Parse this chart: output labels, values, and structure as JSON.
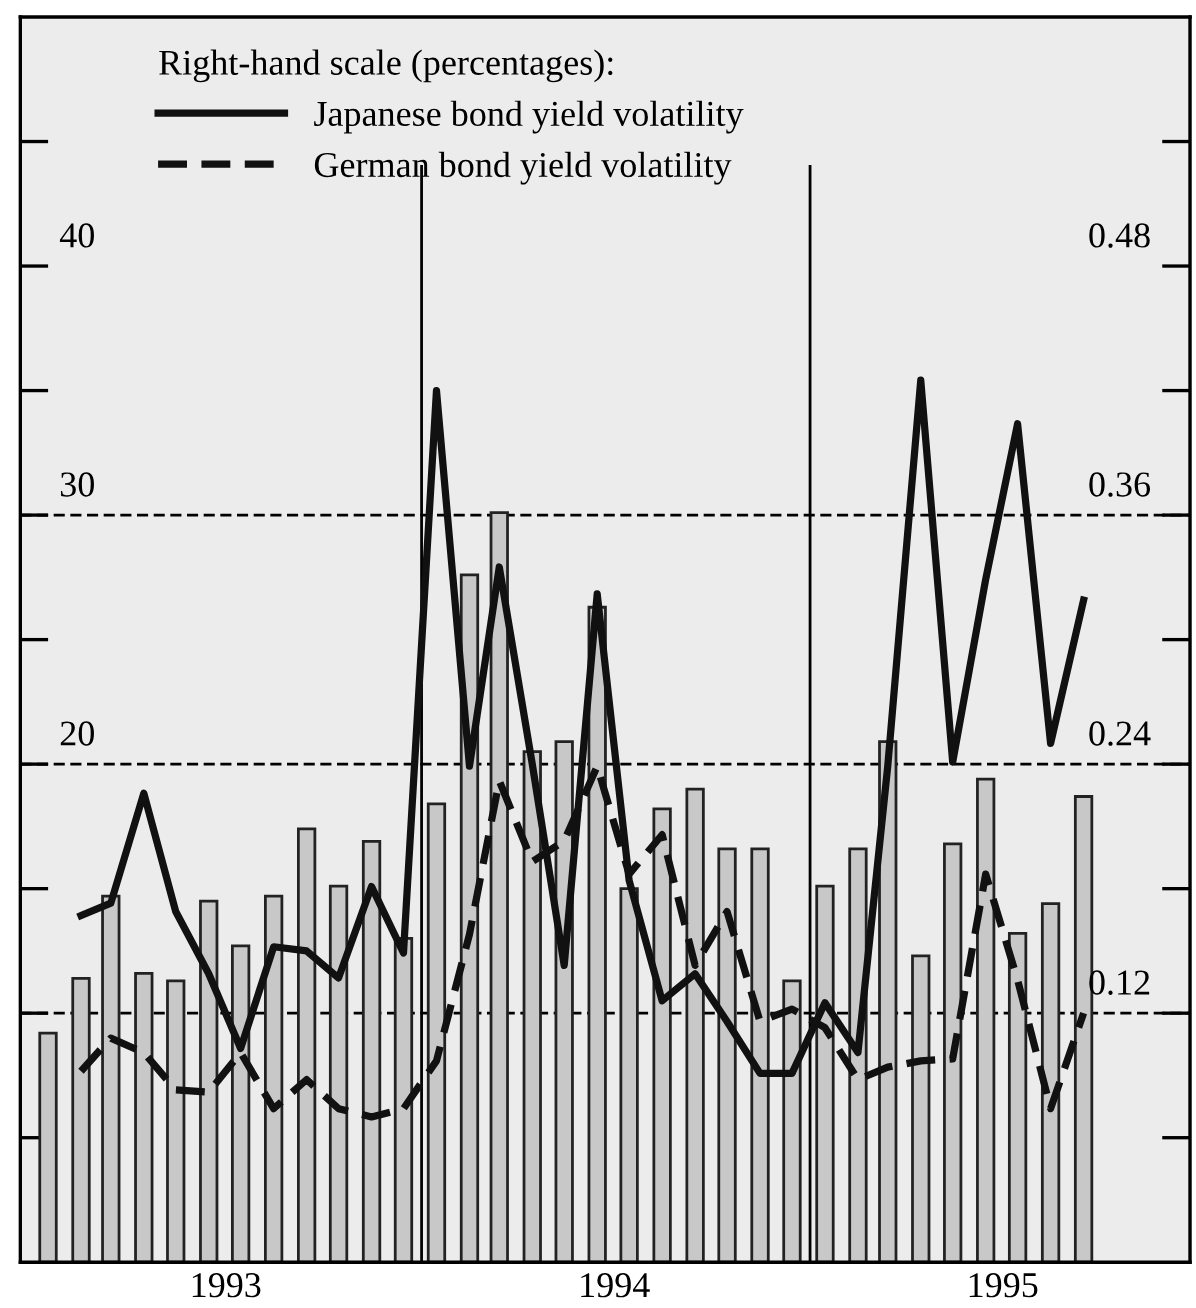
{
  "chart_data": {
    "type": "bar",
    "legend_title": "Right-hand scale (percentages):",
    "legend": "top left",
    "x": [
      "1993-01-15",
      "1993-02-15",
      "1993-03-15",
      "1993-04-15",
      "1993-05-15",
      "1993-06-15",
      "1993-07-15",
      "1993-08-15",
      "1993-09-15",
      "1993-10-15",
      "1993-11-15",
      "1993-12-15",
      "1994-01-15",
      "1994-02-15",
      "1994-03-15",
      "1994-04-15",
      "1994-05-15",
      "1994-06-15",
      "1994-07-15",
      "1994-08-15",
      "1994-09-15",
      "1994-10-15",
      "1994-11-15",
      "1994-12-15",
      "1995-01-15",
      "1995-02-15",
      "1995-03-15",
      "1995-04-15",
      "1995-05-15",
      "1995-06-15",
      "1995-07-15",
      "1995-08-15",
      "1995-09-15"
    ],
    "xlim": [
      "1992-12-20",
      "1995-12-24"
    ],
    "xticks": [
      {
        "value": "1993-07-01",
        "label": "1993"
      },
      {
        "value": "1994-07-01",
        "label": "1994"
      },
      {
        "value": "1995-07-01",
        "label": "1995"
      }
    ],
    "ylim": [
      0,
      50
    ],
    "yticks": [
      {
        "value": 5,
        "label": null
      },
      {
        "value": 10,
        "label": null
      },
      {
        "value": 15,
        "label": null
      },
      20,
      {
        "value": 25,
        "label": null
      },
      30,
      {
        "value": 35,
        "label": null
      },
      40,
      {
        "value": 45,
        "label": null
      }
    ],
    "y2lim": [
      0,
      0.6
    ],
    "y2ticks": [
      {
        "value": 0.06,
        "label": null
      },
      0.12,
      {
        "value": 0.18,
        "label": null
      },
      0.24,
      {
        "value": 0.3,
        "label": null
      },
      0.36,
      {
        "value": 0.42,
        "label": null
      },
      0.48,
      {
        "value": 0.54,
        "label": null
      }
    ],
    "ref_lines": [
      {
        "axis": "y",
        "value": 10,
        "color": "#000000",
        "line_style": "dashed"
      },
      {
        "axis": "y",
        "value": 20,
        "color": "#000000",
        "line_style": "dashed"
      },
      {
        "axis": "y",
        "value": 30,
        "color": "#000000",
        "line_style": "dashed"
      },
      {
        "axis": "x",
        "value": "1994-01-01",
        "color": "#000000",
        "line_style": "solid"
      },
      {
        "axis": "x",
        "value": "1995-01-01",
        "color": "#000000",
        "line_style": "solid"
      }
    ],
    "series": [
      {
        "color": "#c8c8c8",
        "values": [
          9.2,
          11.4,
          14.7,
          11.6,
          11.3,
          14.5,
          12.7,
          14.7,
          17.4,
          15.1,
          16.9,
          13.0,
          18.4,
          27.6,
          30.1,
          20.5,
          20.9,
          26.3,
          15.0,
          18.2,
          19.0,
          16.6,
          16.6,
          11.3,
          15.1,
          16.6,
          20.9,
          12.3,
          16.8,
          19.4,
          13.2,
          14.4,
          18.7
        ]
      },
      {
        "type": "line",
        "axis": "y2",
        "name": "Japanese bond yield volatility",
        "color": "#111111",
        "line_style": "solid",
        "values": [
          null,
          0.167,
          0.173,
          0.226,
          0.169,
          0.139,
          0.103,
          0.152,
          0.15,
          0.137,
          0.181,
          0.149,
          0.42,
          0.239,
          0.335,
          0.24,
          0.143,
          0.322,
          0.184,
          0.126,
          0.139,
          0.116,
          0.091,
          0.091,
          0.125,
          0.101,
          0.239,
          0.425,
          0.241,
          0.329,
          0.404,
          0.25,
          0.319
        ]
      },
      {
        "type": "line",
        "axis": "y2",
        "name": "German bond yield volatility",
        "color": "#111111",
        "line_style": "dashed",
        "values": [
          null,
          0.092,
          0.108,
          0.101,
          0.083,
          0.082,
          0.101,
          0.074,
          0.088,
          0.074,
          0.07,
          0.074,
          0.097,
          0.158,
          0.232,
          0.193,
          0.203,
          0.239,
          0.187,
          0.206,
          0.143,
          0.169,
          0.116,
          0.122,
          0.113,
          0.088,
          0.094,
          0.097,
          0.098,
          0.187,
          0.136,
          0.074,
          0.12
        ]
      }
    ]
  }
}
